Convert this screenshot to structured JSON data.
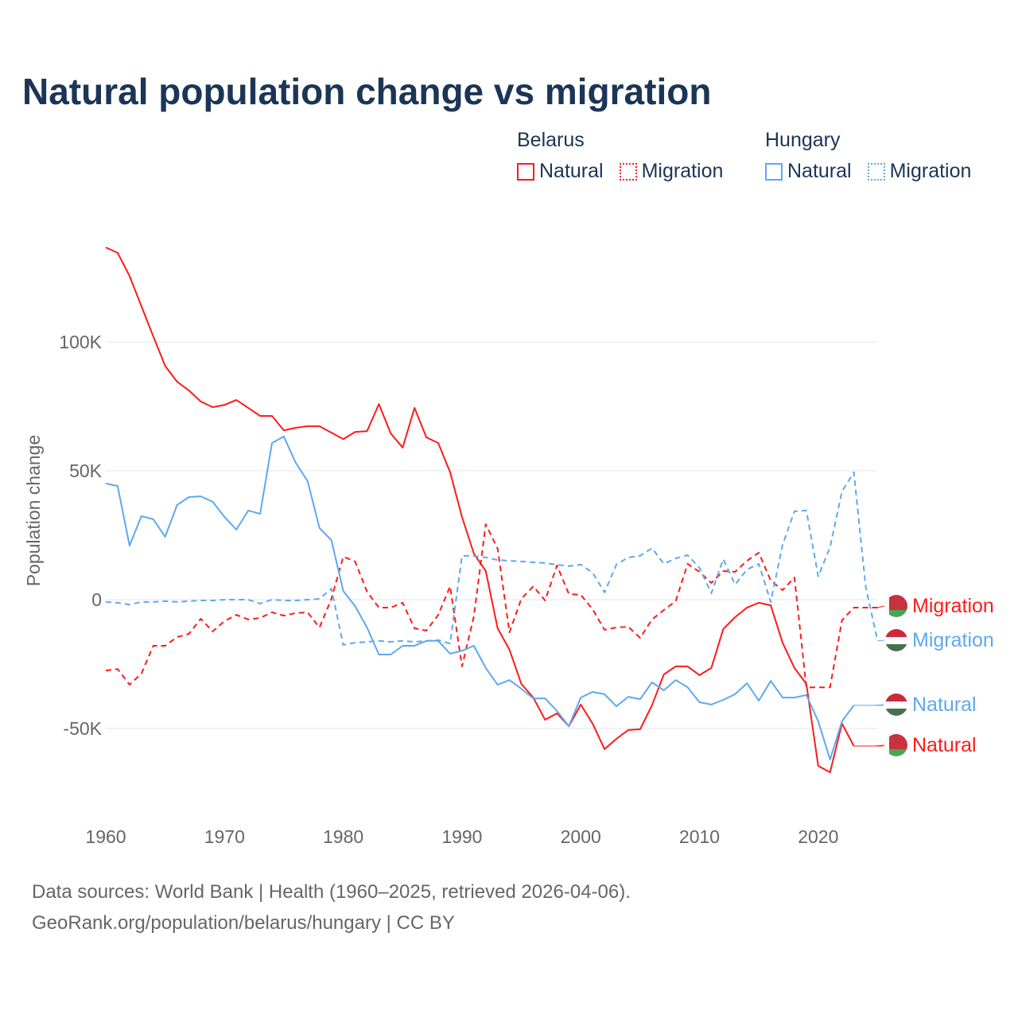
{
  "chart_data": {
    "type": "line",
    "title": "Natural population change vs migration",
    "xlabel": "",
    "ylabel": "Population change",
    "xlim": [
      1960,
      2025
    ],
    "ylim": [
      -80000,
      145000
    ],
    "x_ticks": [
      1960,
      1970,
      1980,
      1990,
      2000,
      2010,
      2020
    ],
    "x_tick_labels": [
      "1960",
      "1970",
      "1980",
      "1990",
      "2000",
      "2010",
      "2020"
    ],
    "y_ticks": [
      -50000,
      0,
      50000,
      100000
    ],
    "y_tick_labels": [
      "-50K",
      "0",
      "50K",
      "100K"
    ],
    "grid": true,
    "legend_placement": "top-right",
    "legend": {
      "groups": [
        {
          "country": "Belarus",
          "items": [
            "Natural",
            "Migration"
          ]
        },
        {
          "country": "Hungary",
          "items": [
            "Natural",
            "Migration"
          ]
        }
      ]
    },
    "x_start": 1960,
    "series": [
      {
        "name": "Belarus Natural",
        "country": "Belarus",
        "kind": "Natural",
        "color": "#ff1a1a",
        "dash": false,
        "end_label": "Natural",
        "values": [
          136.7,
          134.6,
          125.6,
          113.9,
          102.2,
          90.7,
          84.6,
          81.2,
          76.9,
          74.7,
          75.6,
          77.5,
          74.4,
          71.3,
          71.3,
          65.7,
          66.7,
          67.3,
          67.3,
          64.8,
          62.3,
          65.1,
          65.4,
          75.9,
          64.5,
          59,
          74.4,
          63,
          60.8,
          49.4,
          32.1,
          17.9,
          11.1,
          -11.1,
          -19.4,
          -32.7,
          -38,
          -46.6,
          -44.1,
          -49.1,
          -40.7,
          -48.1,
          -58,
          -54,
          -50.6,
          -50.3,
          -41,
          -29,
          -25.9,
          -25.9,
          -29.3,
          -26.5,
          -11.4,
          -6.8,
          -3.1,
          -1.2,
          -2.2,
          -16.7,
          -26.5,
          -32.7,
          -64.5,
          -67,
          -48.1,
          -56.8
        ]
      },
      {
        "name": "Belarus Migration",
        "country": "Belarus",
        "kind": "Migration",
        "color": "#ff1a1a",
        "dash": true,
        "end_label": "Migration",
        "values": [
          -27.5,
          -26.9,
          -33,
          -28.7,
          -17.9,
          -17.9,
          -14.5,
          -13.3,
          -7.4,
          -12.3,
          -8.3,
          -5.9,
          -7.7,
          -7.1,
          -4.9,
          -6.2,
          -5.2,
          -4.9,
          -10.8,
          0.3,
          16.7,
          14.8,
          3.1,
          -3.1,
          -3.1,
          -1.2,
          -11.1,
          -12,
          -5.9,
          5.2,
          -25.9,
          -6.5,
          29.3,
          19.8,
          -12.7,
          0.3,
          5.2,
          -0.3,
          13.3,
          2.2,
          1.9,
          -3.7,
          -11.7,
          -10.8,
          -10.5,
          -14.8,
          -7.7,
          -4,
          -0.6,
          13.9,
          10.8,
          6.5,
          11.1,
          10.8,
          15.1,
          18.2,
          7.4,
          3.7,
          8.6,
          -34,
          -34,
          -34,
          -8,
          -3.1,
          -3.1,
          -3.1
        ]
      },
      {
        "name": "Hungary Natural",
        "country": "Hungary",
        "kind": "Natural",
        "color": "#5ea8f0",
        "dash": false,
        "end_label": "Natural",
        "values": [
          45.1,
          44.1,
          21,
          32.4,
          31.2,
          24.4,
          36.7,
          39.8,
          40.1,
          38,
          32.1,
          27.2,
          34.6,
          33.3,
          60.8,
          63.3,
          53.1,
          46,
          27.8,
          23.1,
          3.4,
          -2.5,
          -10.8,
          -21.3,
          -21.3,
          -17.9,
          -17.9,
          -16,
          -16,
          -21,
          -19.8,
          -17.9,
          -26.5,
          -33,
          -31.2,
          -34.6,
          -38.3,
          -38.3,
          -43.2,
          -49.1,
          -38,
          -35.8,
          -36.7,
          -41.4,
          -37.7,
          -38.6,
          -32.1,
          -35.2,
          -31.2,
          -34,
          -39.8,
          -40.7,
          -38.9,
          -36.7,
          -32.4,
          -39.2,
          -31.5,
          -38,
          -38,
          -37,
          -47.2,
          -62,
          -47.2,
          -41
        ]
      },
      {
        "name": "Hungary Migration",
        "country": "Hungary",
        "kind": "Migration",
        "color": "#5ea8f0",
        "dash": true,
        "end_label": "Migration",
        "values": [
          -0.9,
          -1.2,
          -1.9,
          -0.9,
          -0.9,
          -0.6,
          -0.9,
          -0.6,
          -0.3,
          -0.3,
          0,
          0,
          0,
          -1.5,
          0,
          -0.3,
          -0.3,
          0,
          0.3,
          4.3,
          -17.6,
          -16.7,
          -16.4,
          -16,
          -16.4,
          -16,
          -16.4,
          -16,
          -15.7,
          -17,
          17,
          17,
          16.4,
          15.4,
          15.1,
          14.8,
          14.5,
          14.2,
          13.6,
          13,
          13.6,
          10.5,
          2.8,
          13.6,
          16.4,
          17,
          20,
          13.9,
          16,
          17.3,
          12.3,
          2.5,
          15.7,
          5.9,
          11.7,
          13.9,
          -0.9,
          21.3,
          34.3,
          34.6,
          9,
          20.4,
          42,
          49.4,
          5,
          -16
        ]
      }
    ],
    "value_unit": "thousands"
  },
  "title": "Natural population change vs migration",
  "legend": {
    "belarus": "Belarus",
    "hungary": "Hungary",
    "natural": "Natural",
    "migration": "Migration"
  },
  "footer": {
    "line1": "Data sources: World Bank | Health (1960–2025, retrieved 2026-04-06).",
    "line2": "GeoRank.org/population/belarus/hungary | CC BY"
  }
}
